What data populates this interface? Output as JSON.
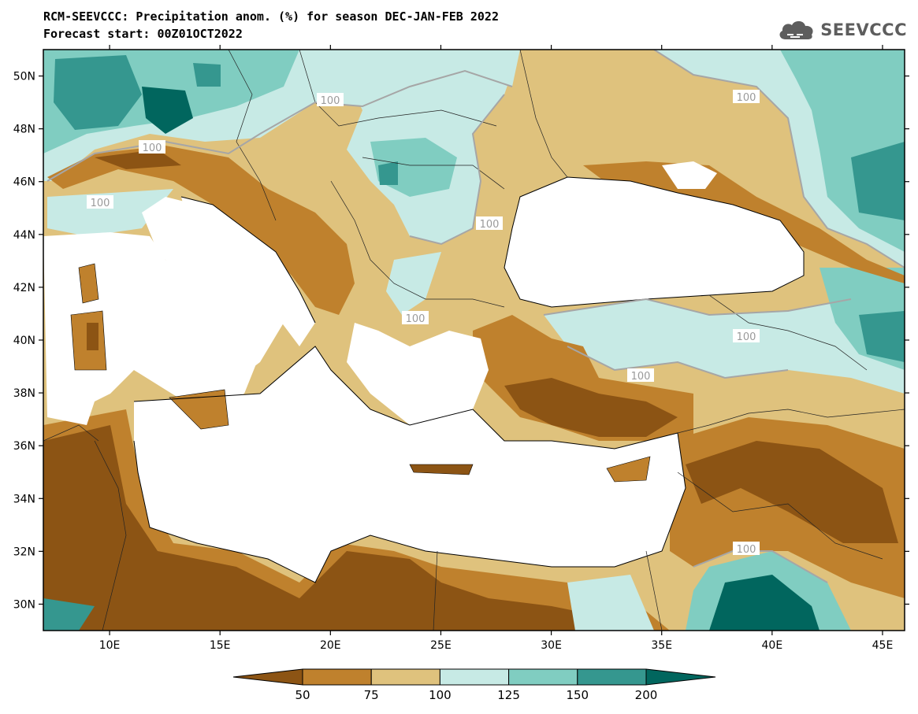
{
  "header": {
    "title_line1": "RCM-SEEVCCC: Precipitation anom. (%) for season DEC-JAN-FEB 2022",
    "title_line2": "Forecast start: 00Z01OCT2022"
  },
  "logo": {
    "text": "SEEVCCC",
    "icon": "cloud-icon"
  },
  "map": {
    "lon_range": [
      7,
      46
    ],
    "lat_range": [
      29,
      51
    ],
    "lon_ticks": [
      "10E",
      "15E",
      "20E",
      "25E",
      "30E",
      "35E",
      "40E",
      "45E"
    ],
    "lat_ticks": [
      "50N",
      "48N",
      "46N",
      "44N",
      "42N",
      "40N",
      "38N",
      "36N",
      "34N",
      "32N",
      "30N"
    ],
    "contour_labels": [
      "100",
      "100",
      "100",
      "100",
      "100",
      "100",
      "100",
      "100",
      "100"
    ]
  },
  "colorbar": {
    "labels": [
      "50",
      "75",
      "100",
      "125",
      "150",
      "200"
    ],
    "colors": [
      "#8c5414",
      "#bf812d",
      "#dfc27d",
      "#c7eae5",
      "#80cdc1",
      "#35978f",
      "#01665e"
    ]
  }
}
